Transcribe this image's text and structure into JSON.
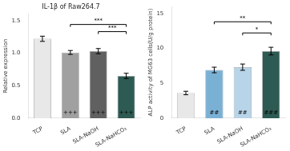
{
  "chart_data": [
    {
      "type": "bar",
      "title": "IL-1β of Raw264.7",
      "ylabel": "Relative expression",
      "categories": [
        "TCP",
        "SLA",
        "SLA-NaOH",
        "SLA-NaHCO₃"
      ],
      "values": [
        1.22,
        1.01,
        1.03,
        0.65
      ],
      "errors": [
        0.04,
        0.03,
        0.04,
        0.04
      ],
      "colors": [
        "#e8e8e8",
        "#a0a0a0",
        "#606060",
        "#2d5a52"
      ],
      "ylim": [
        0,
        1.6
      ],
      "yticks": [
        {
          "value": 0,
          "label": "0.0"
        },
        0.5,
        {
          "value": 1,
          "label": "1.0"
        },
        1.5
      ],
      "grid": false,
      "annotations": [
        {
          "category": "SLA",
          "label": "+++"
        },
        {
          "category": "SLA-NaOH",
          "label": "+++"
        },
        {
          "category": "SLA-NaHCO₃",
          "label": "+++"
        },
        {
          "from": "SLA",
          "to": "SLA-NaHCO₃",
          "y": 1.44,
          "label": "***"
        },
        {
          "from": "SLA-NaOH",
          "to": "SLA-NaHCO₃",
          "y": 1.33,
          "label": "***"
        }
      ]
    },
    {
      "type": "bar",
      "ylabel": "ALP activity of MG63 cells(U/g protein)",
      "categories": [
        "TCP",
        "SLA",
        "SLA-NaOH",
        "SLA-NaHCO₃"
      ],
      "values": [
        3.6,
        6.9,
        7.3,
        9.6
      ],
      "errors": [
        0.25,
        0.4,
        0.45,
        0.55
      ],
      "colors": [
        "#e8e8e8",
        "#7ab0d4",
        "#b8d4e8",
        "#2d5a52"
      ],
      "ylim": [
        0,
        16
      ],
      "yticks": [
        0,
        5,
        10,
        15
      ],
      "grid": false,
      "annotations": [
        {
          "category": "SLA",
          "label": "##"
        },
        {
          "category": "SLA-NaOH",
          "label": "##"
        },
        {
          "category": "SLA-NaHCO₃",
          "label": "###"
        },
        {
          "from": "SLA",
          "to": "SLA-NaHCO₃",
          "y": 13.8,
          "label": "**"
        },
        {
          "from": "SLA-NaOH",
          "to": "SLA-NaHCO₃",
          "y": 12.2,
          "label": "*"
        }
      ]
    }
  ]
}
